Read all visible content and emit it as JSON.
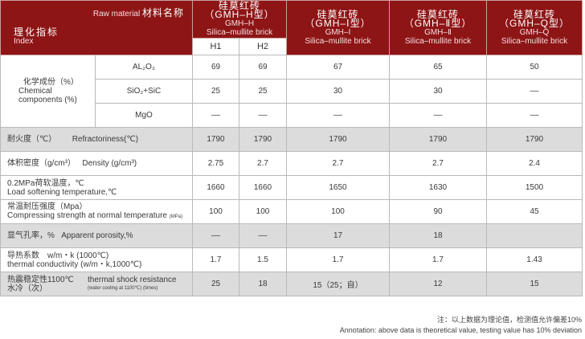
{
  "header": {
    "raw_material_en": "Raw material",
    "raw_material_zh": "材料名称",
    "index_zh": "理化指标",
    "index_en": "Index",
    "col_h_zh": "硅莫红砖",
    "col_h_type": "（GMH–H型）",
    "col_h_code": "GMH–H",
    "col_h_en": "Silica–mullite brick",
    "col_1_zh": "硅莫红砖",
    "col_1_type": "（GMH–Ⅰ型）",
    "col_1_code": "GMH–Ⅰ",
    "col_1_en": "Silica–mullite brick",
    "col_2_zh": "硅莫红砖",
    "col_2_type": "（GMH–Ⅱ型）",
    "col_2_code": "GMH–Ⅱ",
    "col_2_en": "Silica–mullite brick",
    "col_q_zh": "硅莫红砖",
    "col_q_type": "（GMH–Q型）",
    "col_q_code": "GMH–Q",
    "col_q_en": "Silica–mullite brick",
    "sub_h1": "H1",
    "sub_h2": "H2"
  },
  "chem": {
    "label_zh": "化学成份（%）",
    "label_en": "Chemical components (%)",
    "rows": [
      {
        "name": "AL₂O₃",
        "v": [
          "69",
          "69",
          "67",
          "65",
          "50"
        ]
      },
      {
        "name": "SiO₂+SiC",
        "v": [
          "25",
          "25",
          "30",
          "30",
          "––"
        ]
      },
      {
        "name": "MgO",
        "v": [
          "––",
          "––",
          "––",
          "––",
          "––"
        ]
      }
    ]
  },
  "props": [
    {
      "zh": "耐火度（℃）",
      "en": "Refractoriness(℃)",
      "v": [
        "1790",
        "1790",
        "1790",
        "1790",
        "1790"
      ]
    },
    {
      "zh": "体积密度（g/cm³）",
      "en": "Density (g/cm³)",
      "v": [
        "2.75",
        "2.7",
        "2.7",
        "2.7",
        "2.4"
      ]
    },
    {
      "zh": "0.2MPa荷软温度，℃",
      "en": "Load softening temperature,℃",
      "v": [
        "1660",
        "1660",
        "1650",
        "1630",
        "1500"
      ]
    },
    {
      "zh": "常温耐压强度（Mpa）",
      "en": "Compressing strength at normal temperature",
      "en_small": "(MPa)",
      "v": [
        "100",
        "100",
        "100",
        "90",
        "45"
      ]
    },
    {
      "zh": "显气孔率，%",
      "en": "Apparent porosity,%",
      "v": [
        "––",
        "––",
        "17",
        "18",
        ""
      ]
    },
    {
      "zh": "导热系数　w/m・k (1000℃)",
      "en": "thermal conductivity (w/m・k,1000℃)",
      "v": [
        "1.7",
        "1.5",
        "1.7",
        "1.7",
        "1.43"
      ]
    },
    {
      "zh": "热震稳定性1100℃",
      "zh2": "水冷（次）",
      "en": "thermal shock resistance",
      "en_small": "(water cooling at 1100℃) (times)",
      "v": [
        "25",
        "18",
        "15（25；自）",
        "12",
        "15"
      ]
    }
  ],
  "notes": {
    "zh": "注：以上数据为理论值，检测值允许偏差10%",
    "en": "Annotation: above data is theoretical value, testing value has 10% deviation"
  },
  "colors": {
    "header_red": "#8e1516",
    "gray_row": "#dcdcdc"
  }
}
